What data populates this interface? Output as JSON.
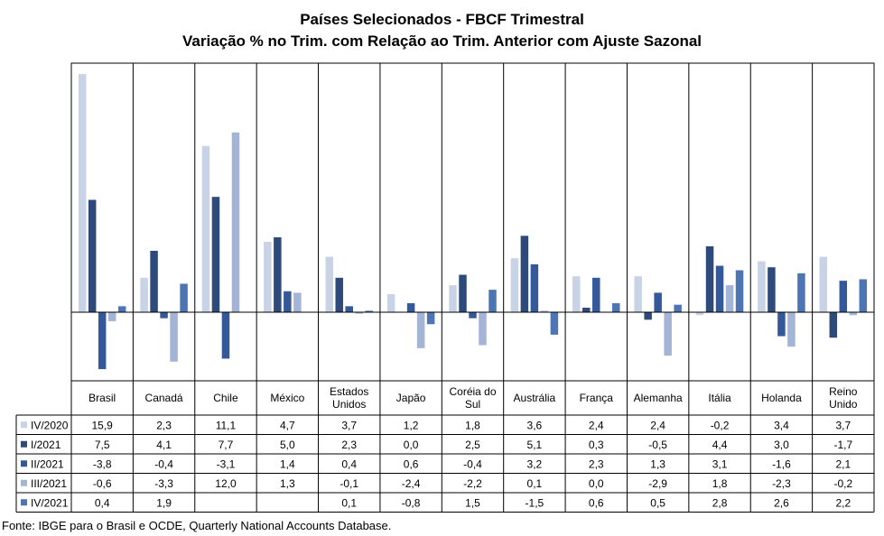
{
  "chart_data": {
    "type": "bar",
    "title": "Países Selecionados - FBCF Trimestral",
    "subtitle": "Variação % no Trim. com Relação ao Trim. Anterior com Ajuste Sazonal",
    "categories": [
      "Brasil",
      "Canadá",
      "Chile",
      "México",
      "Estados Unidos",
      "Japão",
      "Coréia do Sul",
      "Austrália",
      "França",
      "Alemanha",
      "Itália",
      "Holanda",
      "Reino Unido"
    ],
    "category_lines": [
      [
        "Brasil"
      ],
      [
        "Canadá"
      ],
      [
        "Chile"
      ],
      [
        "México"
      ],
      [
        "Estados",
        "Unidos"
      ],
      [
        "Japão"
      ],
      [
        "Coréia do",
        "Sul"
      ],
      [
        "Austrália"
      ],
      [
        "França"
      ],
      [
        "Alemanha"
      ],
      [
        "Itália"
      ],
      [
        "Holanda"
      ],
      [
        "Reino",
        "Unido"
      ]
    ],
    "series": [
      {
        "name": "IV/2020",
        "color": "#c9d3e6",
        "values": [
          15.9,
          2.3,
          11.1,
          4.7,
          3.7,
          1.2,
          1.8,
          3.6,
          2.4,
          2.4,
          -0.2,
          3.4,
          3.7
        ]
      },
      {
        "name": "I/2021",
        "color": "#2e4a7a",
        "values": [
          7.5,
          4.1,
          7.7,
          5.0,
          2.3,
          0.0,
          2.5,
          5.1,
          0.3,
          -0.5,
          4.4,
          3.0,
          -1.7
        ]
      },
      {
        "name": "II/2021",
        "color": "#35589a",
        "values": [
          -3.8,
          -0.4,
          -3.1,
          1.4,
          0.4,
          0.6,
          -0.4,
          3.2,
          2.3,
          1.3,
          3.1,
          -1.6,
          2.1
        ]
      },
      {
        "name": "III/2021",
        "color": "#a3b4d6",
        "values": [
          -0.6,
          -3.3,
          12.0,
          1.3,
          -0.1,
          -2.4,
          -2.2,
          0.1,
          0.0,
          -2.9,
          1.8,
          -2.3,
          -0.2
        ]
      },
      {
        "name": "IV/2021",
        "color": "#4d75b4",
        "values": [
          0.4,
          1.9,
          null,
          null,
          0.1,
          -0.8,
          1.5,
          -1.5,
          0.6,
          0.5,
          2.8,
          2.6,
          2.2
        ]
      }
    ],
    "table_values": [
      [
        "15,9",
        "2,3",
        "11,1",
        "4,7",
        "3,7",
        "1,2",
        "1,8",
        "3,6",
        "2,4",
        "2,4",
        "-0,2",
        "3,4",
        "3,7"
      ],
      [
        "7,5",
        "4,1",
        "7,7",
        "5,0",
        "2,3",
        "0,0",
        "2,5",
        "5,1",
        "0,3",
        "-0,5",
        "4,4",
        "3,0",
        "-1,7"
      ],
      [
        "-3,8",
        "-0,4",
        "-3,1",
        "1,4",
        "0,4",
        "0,6",
        "-0,4",
        "3,2",
        "2,3",
        "1,3",
        "3,1",
        "-1,6",
        "2,1"
      ],
      [
        "-0,6",
        "-3,3",
        "12,0",
        "1,3",
        "-0,1",
        "-2,4",
        "-2,2",
        "0,1",
        "0,0",
        "-2,9",
        "1,8",
        "-2,3",
        "-0,2"
      ],
      [
        "0,4",
        "1,9",
        "",
        "",
        "0,1",
        "-0,8",
        "1,5",
        "-1,5",
        "0,6",
        "0,5",
        "2,8",
        "2,6",
        "2,2"
      ]
    ],
    "ylim": [
      -4.0,
      16.0
    ],
    "grid": false,
    "legend": "data-table"
  },
  "source": "Fonte: IBGE para o Brasil e OCDE, Quarterly National Accounts Database."
}
